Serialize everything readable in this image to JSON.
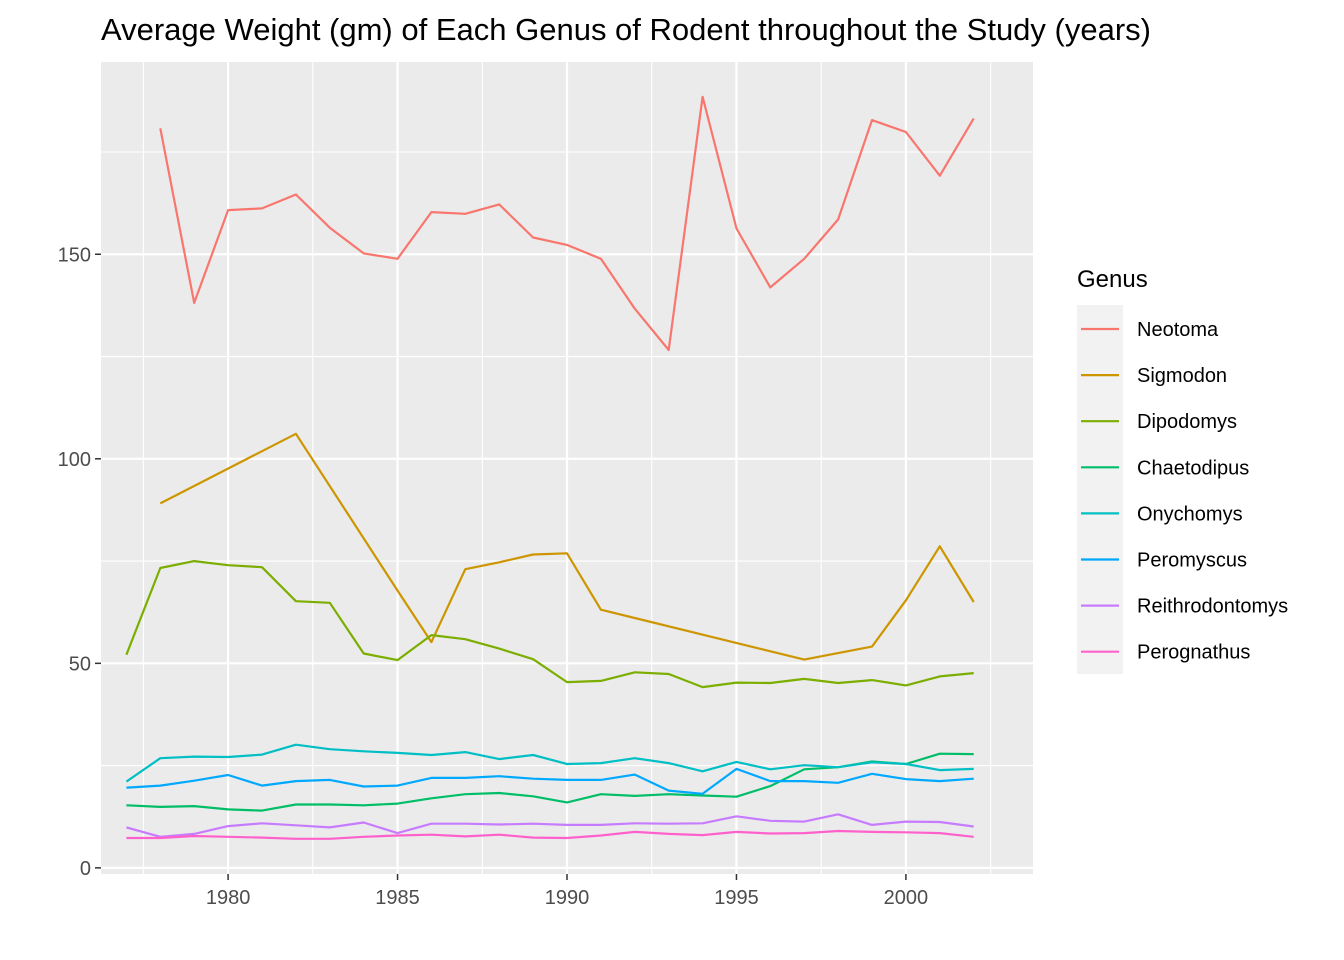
{
  "chart_data": {
    "type": "line",
    "title": "Average Weight (gm) of Each Genus of Rodent throughout the Study (years)",
    "xlabel": "",
    "ylabel": "",
    "xlim": [
      1976.25,
      2003.75
    ],
    "ylim": [
      -1.5,
      197
    ],
    "x_ticks": [
      1980,
      1985,
      1990,
      1995,
      2000
    ],
    "y_ticks": [
      0,
      50,
      100,
      150
    ],
    "grid": true,
    "legend_title": "Genus",
    "legend_position": "right",
    "series": [
      {
        "name": "Neotoma",
        "color": "#F8766D",
        "points": [
          [
            1978,
            180.8
          ],
          [
            1979,
            138.1
          ],
          [
            1980,
            160.8
          ],
          [
            1981,
            161.2
          ],
          [
            1982,
            164.6
          ],
          [
            1983,
            156.5
          ],
          [
            1984,
            150.2
          ],
          [
            1985,
            148.9
          ],
          [
            1986,
            160.3
          ],
          [
            1987,
            159.9
          ],
          [
            1988,
            162.2
          ],
          [
            1989,
            154.1
          ],
          [
            1990,
            152.3
          ],
          [
            1991,
            148.9
          ],
          [
            1992,
            136.7
          ],
          [
            1993,
            126.6
          ],
          [
            1994,
            188.5
          ],
          [
            1995,
            156.3
          ],
          [
            1996,
            141.9
          ],
          [
            1997,
            148.9
          ],
          [
            1998,
            158.5
          ],
          [
            1999,
            182.8
          ],
          [
            2000,
            179.9
          ],
          [
            2001,
            169.2
          ],
          [
            2002,
            183.2
          ]
        ]
      },
      {
        "name": "Sigmodon",
        "color": "#CD9600",
        "points": [
          [
            1978,
            89.1
          ],
          [
            1982,
            106.1
          ],
          [
            1985,
            67.8
          ],
          [
            1986,
            55.2
          ],
          [
            1987,
            73.0
          ],
          [
            1988,
            74.7
          ],
          [
            1989,
            76.6
          ],
          [
            1990,
            76.9
          ],
          [
            1991,
            63.1
          ],
          [
            1997,
            50.9
          ],
          [
            1999,
            54.1
          ],
          [
            2000,
            65.4
          ],
          [
            2001,
            78.6
          ],
          [
            2002,
            65.0
          ]
        ]
      },
      {
        "name": "Dipodomys",
        "color": "#7CAE00",
        "points": [
          [
            1977,
            52.1
          ],
          [
            1978,
            73.3
          ],
          [
            1979,
            75.0
          ],
          [
            1980,
            74.0
          ],
          [
            1981,
            73.5
          ],
          [
            1982,
            65.2
          ],
          [
            1983,
            64.8
          ],
          [
            1984,
            52.4
          ],
          [
            1985,
            50.8
          ],
          [
            1986,
            56.9
          ],
          [
            1987,
            55.9
          ],
          [
            1988,
            53.6
          ],
          [
            1989,
            51.0
          ],
          [
            1990,
            45.4
          ],
          [
            1991,
            45.7
          ],
          [
            1992,
            47.8
          ],
          [
            1993,
            47.4
          ],
          [
            1994,
            44.2
          ],
          [
            1995,
            45.3
          ],
          [
            1996,
            45.2
          ],
          [
            1997,
            46.2
          ],
          [
            1998,
            45.2
          ],
          [
            1999,
            45.9
          ],
          [
            2000,
            44.6
          ],
          [
            2001,
            46.8
          ],
          [
            2002,
            47.6
          ]
        ]
      },
      {
        "name": "Chaetodipus",
        "color": "#00BE67",
        "points": [
          [
            1977,
            15.3
          ],
          [
            1978,
            14.9
          ],
          [
            1979,
            15.1
          ],
          [
            1980,
            14.3
          ],
          [
            1981,
            14.0
          ],
          [
            1982,
            15.5
          ],
          [
            1983,
            15.5
          ],
          [
            1984,
            15.3
          ],
          [
            1985,
            15.7
          ],
          [
            1986,
            17.0
          ],
          [
            1987,
            18.0
          ],
          [
            1988,
            18.3
          ],
          [
            1989,
            17.5
          ],
          [
            1990,
            16.0
          ],
          [
            1991,
            18.0
          ],
          [
            1992,
            17.6
          ],
          [
            1993,
            18.0
          ],
          [
            1994,
            17.7
          ],
          [
            1995,
            17.4
          ],
          [
            1996,
            20.0
          ],
          [
            1997,
            24.1
          ],
          [
            1998,
            24.6
          ],
          [
            1999,
            26.0
          ],
          [
            2000,
            25.4
          ],
          [
            2001,
            27.9
          ],
          [
            2002,
            27.8
          ]
        ]
      },
      {
        "name": "Onychomys",
        "color": "#00BFC4",
        "points": [
          [
            1977,
            21.1
          ],
          [
            1978,
            26.8
          ],
          [
            1979,
            27.2
          ],
          [
            1980,
            27.1
          ],
          [
            1981,
            27.7
          ],
          [
            1982,
            30.1
          ],
          [
            1983,
            29.0
          ],
          [
            1984,
            28.5
          ],
          [
            1985,
            28.1
          ],
          [
            1986,
            27.6
          ],
          [
            1987,
            28.3
          ],
          [
            1988,
            26.6
          ],
          [
            1989,
            27.6
          ],
          [
            1990,
            25.4
          ],
          [
            1991,
            25.6
          ],
          [
            1992,
            26.8
          ],
          [
            1993,
            25.6
          ],
          [
            1994,
            23.6
          ],
          [
            1995,
            25.9
          ],
          [
            1996,
            24.1
          ],
          [
            1997,
            25.1
          ],
          [
            1998,
            24.6
          ],
          [
            1999,
            25.8
          ],
          [
            2000,
            25.4
          ],
          [
            2001,
            23.9
          ],
          [
            2002,
            24.2
          ]
        ]
      },
      {
        "name": "Peromyscus",
        "color": "#00A9FF",
        "points": [
          [
            1977,
            19.6
          ],
          [
            1978,
            20.1
          ],
          [
            1979,
            21.3
          ],
          [
            1980,
            22.7
          ],
          [
            1981,
            20.1
          ],
          [
            1982,
            21.2
          ],
          [
            1983,
            21.5
          ],
          [
            1984,
            19.9
          ],
          [
            1985,
            20.1
          ],
          [
            1986,
            22.0
          ],
          [
            1987,
            22.0
          ],
          [
            1988,
            22.4
          ],
          [
            1989,
            21.8
          ],
          [
            1990,
            21.5
          ],
          [
            1991,
            21.5
          ],
          [
            1992,
            22.8
          ],
          [
            1993,
            18.9
          ],
          [
            1994,
            18.1
          ],
          [
            1995,
            24.2
          ],
          [
            1996,
            21.2
          ],
          [
            1997,
            21.2
          ],
          [
            1998,
            20.8
          ],
          [
            1999,
            23.0
          ],
          [
            2000,
            21.7
          ],
          [
            2001,
            21.2
          ],
          [
            2002,
            21.8
          ]
        ]
      },
      {
        "name": "Reithrodontomys",
        "color": "#C77CFF",
        "points": [
          [
            1977,
            9.9
          ],
          [
            1978,
            7.6
          ],
          [
            1979,
            8.3
          ],
          [
            1980,
            10.2
          ],
          [
            1981,
            10.9
          ],
          [
            1982,
            10.4
          ],
          [
            1983,
            9.9
          ],
          [
            1984,
            11.1
          ],
          [
            1985,
            8.5
          ],
          [
            1986,
            10.8
          ],
          [
            1987,
            10.8
          ],
          [
            1988,
            10.6
          ],
          [
            1989,
            10.8
          ],
          [
            1990,
            10.5
          ],
          [
            1991,
            10.5
          ],
          [
            1992,
            10.9
          ],
          [
            1993,
            10.8
          ],
          [
            1994,
            10.9
          ],
          [
            1995,
            12.6
          ],
          [
            1996,
            11.5
          ],
          [
            1997,
            11.3
          ],
          [
            1998,
            13.1
          ],
          [
            1999,
            10.5
          ],
          [
            2000,
            11.3
          ],
          [
            2001,
            11.2
          ],
          [
            2002,
            10.1
          ]
        ]
      },
      {
        "name": "Perognathus",
        "color": "#FF61CC",
        "points": [
          [
            1977,
            7.3
          ],
          [
            1978,
            7.3
          ],
          [
            1979,
            7.8
          ],
          [
            1980,
            7.6
          ],
          [
            1981,
            7.4
          ],
          [
            1982,
            7.1
          ],
          [
            1983,
            7.1
          ],
          [
            1984,
            7.6
          ],
          [
            1985,
            7.9
          ],
          [
            1986,
            8.1
          ],
          [
            1987,
            7.7
          ],
          [
            1988,
            8.1
          ],
          [
            1989,
            7.4
          ],
          [
            1990,
            7.3
          ],
          [
            1991,
            7.9
          ],
          [
            1992,
            8.8
          ],
          [
            1993,
            8.3
          ],
          [
            1994,
            8.0
          ],
          [
            1995,
            8.8
          ],
          [
            1996,
            8.4
          ],
          [
            1997,
            8.5
          ],
          [
            1998,
            9.0
          ],
          [
            1999,
            8.8
          ],
          [
            2000,
            8.7
          ],
          [
            2001,
            8.5
          ],
          [
            2002,
            7.6
          ]
        ]
      }
    ]
  }
}
